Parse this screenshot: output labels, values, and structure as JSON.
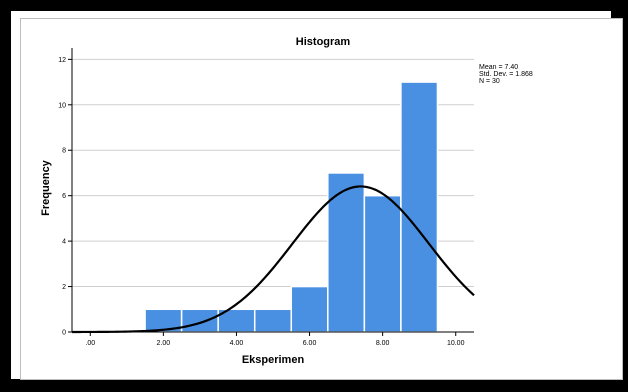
{
  "chart_data": {
    "type": "bar",
    "title": "Histogram",
    "xlabel": "Eksperimen",
    "ylabel": "Frequency",
    "xlim": [
      -0.5,
      10.5
    ],
    "ylim": [
      0,
      12.5
    ],
    "x_ticks": [
      0,
      2,
      4,
      6,
      8,
      10
    ],
    "x_tick_labels": [
      ".00",
      "2.00",
      "4.00",
      "6.00",
      "8.00",
      "10.00"
    ],
    "y_ticks": [
      0,
      2,
      4,
      6,
      8,
      10,
      12
    ],
    "y_tick_labels": [
      "0",
      "2",
      "4",
      "6",
      "8",
      "10",
      "12"
    ],
    "grid": "horizontal",
    "bar_color": "#4a90e2",
    "bins": [
      {
        "x0": 1.5,
        "x1": 2.5,
        "count": 1
      },
      {
        "x0": 2.5,
        "x1": 3.5,
        "count": 1
      },
      {
        "x0": 3.5,
        "x1": 4.5,
        "count": 1
      },
      {
        "x0": 4.5,
        "x1": 5.5,
        "count": 1
      },
      {
        "x0": 5.5,
        "x1": 6.5,
        "count": 2
      },
      {
        "x0": 6.5,
        "x1": 7.5,
        "count": 7
      },
      {
        "x0": 7.5,
        "x1": 8.5,
        "count": 6
      },
      {
        "x0": 8.5,
        "x1": 9.5,
        "count": 11
      }
    ],
    "normal_curve": {
      "mean": 7.4,
      "sd": 1.868,
      "n": 30,
      "bin_width": 1
    },
    "stats": {
      "mean": "Mean = 7.40",
      "sd": "Std. Dev. = 1.868",
      "n": "N = 30"
    },
    "stats_placement": "top-right"
  }
}
